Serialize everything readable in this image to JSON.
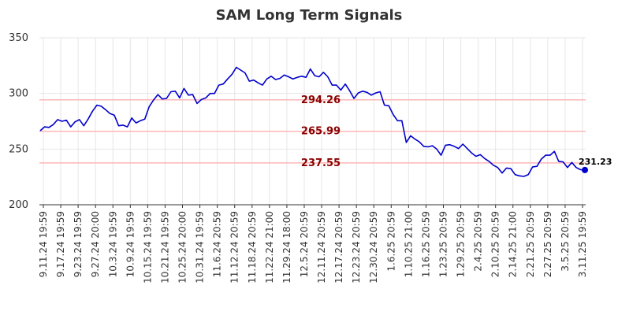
{
  "chart_data": {
    "type": "line",
    "title": "SAM Long Term Signals",
    "xlabel": "",
    "ylabel": "",
    "ylim": [
      200,
      350
    ],
    "yticks": [
      200,
      250,
      300,
      350
    ],
    "grid": true,
    "legend": "none",
    "x_tick_labels": [
      "9.11.24 19:59",
      "9.17.24 19:59",
      "9.23.24 19:59",
      "9.27.24 20:00",
      "10.3.24 19:59",
      "10.9.24 19:59",
      "10.15.24 19:59",
      "10.21.24 19:59",
      "10.25.24 20:00",
      "10.31.24 19:59",
      "11.6.24 20:59",
      "11.12.24 20:59",
      "11.18.24 20:59",
      "11.22.24 21:00",
      "11.29.24 18:00",
      "12.5.24 20:59",
      "12.11.24 20:59",
      "12.17.24 20:59",
      "12.23.24 20:59",
      "12.30.24 20:59",
      "1.6.25 20:59",
      "1.10.25 21:00",
      "1.16.25 20:59",
      "1.23.25 20:59",
      "1.29.25 20:59",
      "2.4.25 20:59",
      "2.10.25 20:59",
      "2.14.25 21:00",
      "2.21.25 20:59",
      "2.27.25 20:59",
      "3.5.25 20:59",
      "3.11.25 19:59"
    ],
    "signal_levels": [
      294.26,
      265.99,
      237.55
    ],
    "signal_labels": [
      "294.26",
      "265.99",
      "237.55"
    ],
    "last_value_label": "231.23",
    "series": [
      {
        "values": [
          266.5,
          270.0,
          269.5,
          272.0,
          276.5,
          275.0,
          276.0,
          270.0,
          274.5,
          276.5,
          271.0,
          277.0,
          284.0,
          289.5,
          288.5,
          285.5,
          282.0,
          280.5,
          271.0,
          271.5,
          270.0,
          278.0,
          273.5,
          275.5,
          277.0,
          288.0,
          294.0,
          299.0,
          295.0,
          295.5,
          301.5,
          302.0,
          296.0,
          304.5,
          298.5,
          299.0,
          291.0,
          294.5,
          296.0,
          300.0,
          300.0,
          307.5,
          308.5,
          313.0,
          317.0,
          323.5,
          321.0,
          318.5,
          311.0,
          312.0,
          309.5,
          307.5,
          313.0,
          315.5,
          312.5,
          313.5,
          316.5,
          315.0,
          313.0,
          314.5,
          315.5,
          314.5,
          322.0,
          316.0,
          315.0,
          319.0,
          315.0,
          307.5,
          307.5,
          303.0,
          308.5,
          302.5,
          295.5,
          300.5,
          302.0,
          301.0,
          298.5,
          300.5,
          301.5,
          289.5,
          289.0,
          281.0,
          275.5,
          275.5,
          256.0,
          262.0,
          259.0,
          256.5,
          252.5,
          252.0,
          253.0,
          250.0,
          244.5,
          253.5,
          254.0,
          252.5,
          250.5,
          254.5,
          250.5,
          246.5,
          243.5,
          245.0,
          241.5,
          239.0,
          235.5,
          233.5,
          228.5,
          233.0,
          232.5,
          227.0,
          226.0,
          225.5,
          227.0,
          234.0,
          234.5,
          241.0,
          244.5,
          244.5,
          248.0,
          239.0,
          238.5,
          233.5,
          238.0,
          233.5,
          231.5,
          231.23
        ]
      }
    ],
    "colors": {
      "line": "#0000cc",
      "signal_line": "#ffb6b6",
      "signal_label": "#8b0000",
      "grid": "#e6e6e6",
      "text": "#333333"
    }
  }
}
